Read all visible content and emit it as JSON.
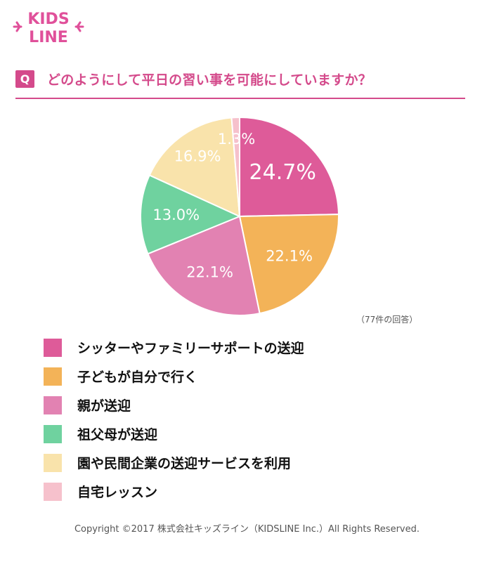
{
  "logo": {
    "line1": "KIDS",
    "line2": "LINE",
    "color": "#e0509a"
  },
  "question": {
    "badge": "Q",
    "text": "どのようにして平日の習い事を可能にしていますか？"
  },
  "respondents": "（77件の回答）",
  "copyright": "Copyright ©2017 株式会社キッズライン（KIDSLINE Inc.）All Rights Reserved.",
  "chart_data": {
    "type": "pie",
    "categories": [
      "シッターやファミリーサポートの送迎",
      "子どもが自分で行く",
      "親が送迎",
      "祖父母が送迎",
      "園や民間企業の送迎サービスを利用",
      "自宅レッスン"
    ],
    "values": [
      24.7,
      22.1,
      22.1,
      13.0,
      16.9,
      1.3
    ],
    "labels": [
      "24.7%",
      "22.1%",
      "22.1%",
      "13.0%",
      "16.9%",
      "1.3%"
    ],
    "colors": [
      "#de5b99",
      "#f3b358",
      "#e282b2",
      "#6fd29f",
      "#f9e3ab",
      "#f6c1cc"
    ],
    "legend": "bottom"
  }
}
